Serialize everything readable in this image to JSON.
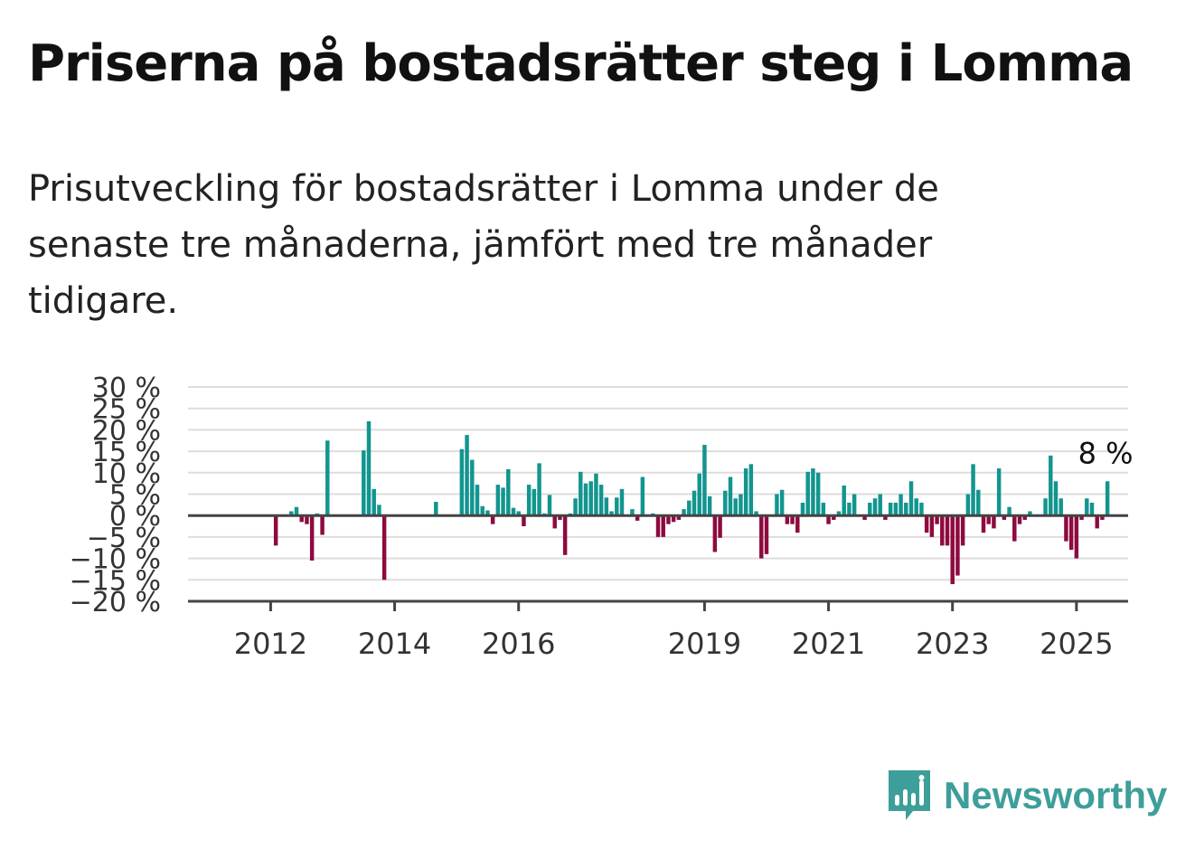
{
  "title": "Priserna på bostadsrätter steg i Lomma",
  "subtitle": "Prisutveckling för bostadsrätter i Lomma under de senaste tre månaderna, jämfört med tre månader tidigare.",
  "logo_text": "Newsworthy",
  "colors": {
    "positive": "#12958f",
    "negative": "#8e0a3f",
    "grid": "#dddddd",
    "axis": "#444444"
  },
  "chart_data": {
    "type": "bar",
    "title": "",
    "xlabel": "",
    "ylabel": "",
    "y_unit": "%",
    "ylim": [
      -20,
      30
    ],
    "y_ticks": [
      -20,
      -15,
      -10,
      -5,
      0,
      5,
      10,
      15,
      20,
      25,
      30
    ],
    "y_tick_labels": [
      "−20 %",
      "−15 %",
      "−10 %",
      "−5 %",
      "0 %",
      "5 %",
      "10 %",
      "15 %",
      "20 %",
      "25 %",
      "30 %"
    ],
    "x_tick_labels": [
      "2012",
      "2014",
      "2016",
      "2019",
      "2021",
      "2023",
      "2025"
    ],
    "x_tick_months": [
      "2012-01",
      "2014-01",
      "2016-01",
      "2019-01",
      "2021-01",
      "2023-01",
      "2025-01"
    ],
    "x_range": [
      "2010-09",
      "2025-11"
    ],
    "grid": true,
    "end_label": "8 %",
    "months": [
      "2012-02",
      "2012-03",
      "2012-04",
      "2012-05",
      "2012-06",
      "2012-07",
      "2012-08",
      "2012-09",
      "2012-10",
      "2012-11",
      "2012-12",
      "2013-01",
      "2013-02",
      "2013-03",
      "2013-04",
      "2013-05",
      "2013-06",
      "2013-07",
      "2013-08",
      "2013-09",
      "2013-10",
      "2013-11",
      "2013-12",
      "2014-01",
      "2014-02",
      "2014-03",
      "2014-04",
      "2014-05",
      "2014-06",
      "2014-07",
      "2014-08",
      "2014-09",
      "2014-10",
      "2014-11",
      "2014-12",
      "2015-01",
      "2015-02",
      "2015-03",
      "2015-04",
      "2015-05",
      "2015-06",
      "2015-07",
      "2015-08",
      "2015-09",
      "2015-10",
      "2015-11",
      "2015-12",
      "2016-01",
      "2016-02",
      "2016-03",
      "2016-04",
      "2016-05",
      "2016-06",
      "2016-07",
      "2016-08",
      "2016-09",
      "2016-10",
      "2016-11",
      "2016-12",
      "2017-01",
      "2017-02",
      "2017-03",
      "2017-04",
      "2017-05",
      "2017-06",
      "2017-07",
      "2017-08",
      "2017-09",
      "2017-10",
      "2017-11",
      "2017-12",
      "2018-01",
      "2018-02",
      "2018-03",
      "2018-04",
      "2018-05",
      "2018-06",
      "2018-07",
      "2018-08",
      "2018-09",
      "2018-10",
      "2018-11",
      "2018-12",
      "2019-01",
      "2019-02",
      "2019-03",
      "2019-04",
      "2019-05",
      "2019-06",
      "2019-07",
      "2019-08",
      "2019-09",
      "2019-10",
      "2019-11",
      "2019-12",
      "2020-01",
      "2020-02",
      "2020-03",
      "2020-04",
      "2020-05",
      "2020-06",
      "2020-07",
      "2020-08",
      "2020-09",
      "2020-10",
      "2020-11",
      "2020-12",
      "2021-01",
      "2021-02",
      "2021-03",
      "2021-04",
      "2021-05",
      "2021-06",
      "2021-07",
      "2021-08",
      "2021-09",
      "2021-10",
      "2021-11",
      "2021-12",
      "2022-01",
      "2022-02",
      "2022-03",
      "2022-04",
      "2022-05",
      "2022-06",
      "2022-07",
      "2022-08",
      "2022-09",
      "2022-10",
      "2022-11",
      "2022-12",
      "2023-01",
      "2023-02",
      "2023-03",
      "2023-04",
      "2023-05",
      "2023-06",
      "2023-07",
      "2023-08",
      "2023-09",
      "2023-10",
      "2023-11",
      "2023-12",
      "2024-01",
      "2024-02",
      "2024-03",
      "2024-04",
      "2024-05",
      "2024-06",
      "2024-07",
      "2024-08",
      "2024-09",
      "2024-10",
      "2024-11",
      "2024-12",
      "2025-01",
      "2025-02",
      "2025-03",
      "2025-04",
      "2025-05",
      "2025-06",
      "2025-07"
    ],
    "values": [
      -7,
      null,
      null,
      1,
      2,
      -1.5,
      -2,
      -10.5,
      0.5,
      -4.5,
      17.5,
      null,
      null,
      null,
      null,
      null,
      null,
      15.2,
      22,
      6.2,
      2.5,
      -15,
      null,
      null,
      null,
      null,
      null,
      null,
      null,
      null,
      null,
      3.2,
      null,
      null,
      null,
      null,
      15.5,
      18.8,
      13,
      7.2,
      2.2,
      1.2,
      -2,
      7.2,
      6.5,
      10.8,
      1.8,
      1,
      -2.5,
      7.2,
      6.2,
      12.2,
      0.5,
      4.8,
      -3,
      -1,
      -9.2,
      0.5,
      4,
      10.2,
      7.5,
      8,
      9.8,
      7.2,
      4.2,
      1,
      4.2,
      6.2,
      null,
      1.5,
      -1.2,
      9,
      null,
      0.5,
      -5,
      -5,
      -2,
      -1.5,
      -1,
      1.5,
      3.5,
      5.8,
      9.8,
      16.5,
      4.5,
      -8.5,
      -5.2,
      5.8,
      9,
      4,
      5,
      11,
      12,
      1,
      -10,
      -9,
      null,
      5,
      6,
      -2,
      -2,
      -4,
      3,
      10.2,
      11,
      10,
      3,
      -2,
      -1,
      1,
      7,
      3,
      5,
      null,
      -1,
      3,
      4,
      5,
      -1,
      3,
      3,
      5,
      3,
      8,
      4,
      3,
      -4,
      -5,
      -2,
      -7,
      -7,
      -16,
      -14,
      -7,
      5,
      12,
      6,
      -4,
      -2,
      -3,
      11,
      -1,
      2,
      -6,
      -2,
      -1,
      1,
      null,
      null,
      4,
      14,
      8,
      4,
      -6,
      -8,
      -10,
      -1,
      4,
      3,
      -3,
      -1,
      8
    ]
  }
}
